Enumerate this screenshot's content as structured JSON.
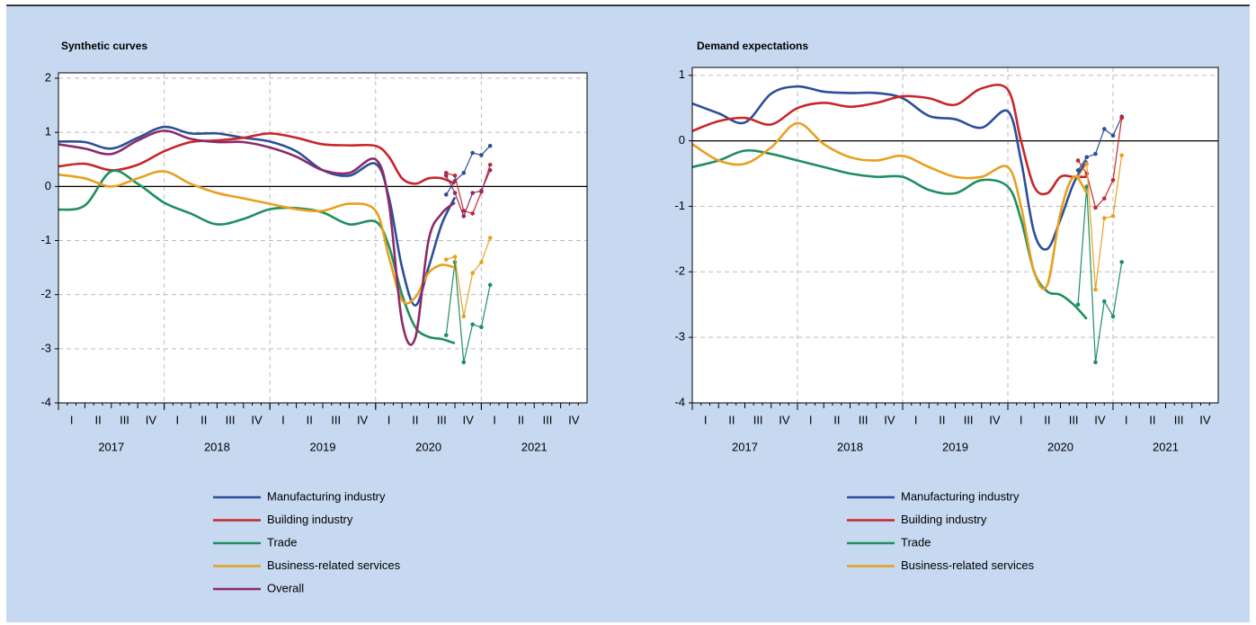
{
  "chart_data": [
    {
      "type": "line",
      "title": "Synthetic curves",
      "x": [
        2017,
        2017.25,
        2017.5,
        2017.75,
        2018,
        2018.25,
        2018.5,
        2018.75,
        2019,
        2019.25,
        2019.5,
        2019.75,
        2020,
        2020.125,
        2020.25,
        2020.375,
        2020.5,
        2020.625,
        2020.75
      ],
      "monthly_x": [
        2020.667,
        2020.75,
        2020.833,
        2020.917,
        2021,
        2021.083
      ],
      "xlim": [
        2017,
        2022
      ],
      "ylim": [
        -4,
        2.1
      ],
      "yticks": [
        -4,
        -3,
        -2,
        -1,
        0,
        1,
        2
      ],
      "years": [
        2017,
        2018,
        2019,
        2020,
        2021
      ],
      "quarters": [
        "I",
        "II",
        "III",
        "IV"
      ],
      "zero_line": true,
      "grid": true,
      "series": [
        {
          "name": "Manufacturing industry",
          "color": "#2b4f98",
          "values": [
            0.83,
            0.82,
            0.7,
            0.9,
            1.1,
            0.98,
            0.98,
            0.9,
            0.83,
            0.65,
            0.3,
            0.2,
            0.42,
            -0.2,
            -1.5,
            -2.2,
            -1.5,
            -0.7,
            -0.2
          ],
          "monthly": [
            -0.15,
            0.1,
            0.25,
            0.62,
            0.58,
            0.75
          ]
        },
        {
          "name": "Building industry",
          "color": "#c8262b",
          "values": [
            0.37,
            0.42,
            0.3,
            0.4,
            0.65,
            0.82,
            0.85,
            0.9,
            0.98,
            0.9,
            0.78,
            0.76,
            0.75,
            0.55,
            0.15,
            0.05,
            0.15,
            0.15,
            0.05
          ],
          "monthly": [
            0.25,
            0.2,
            -0.45,
            -0.5,
            -0.1,
            0.4
          ]
        },
        {
          "name": "Trade",
          "color": "#1f8f5f",
          "values": [
            -0.43,
            -0.35,
            0.28,
            0.05,
            -0.3,
            -0.5,
            -0.7,
            -0.6,
            -0.42,
            -0.4,
            -0.48,
            -0.7,
            -0.65,
            -1.1,
            -2.0,
            -2.6,
            -2.78,
            -2.82,
            -2.9
          ],
          "monthly": [
            -2.75,
            -1.4,
            -3.25,
            -2.55,
            -2.6,
            -1.82
          ]
        },
        {
          "name": "Business-related services",
          "color": "#e8a020",
          "values": [
            0.22,
            0.15,
            0.0,
            0.15,
            0.28,
            0.05,
            -0.12,
            -0.22,
            -0.32,
            -0.42,
            -0.45,
            -0.32,
            -0.45,
            -1.3,
            -2.1,
            -2.05,
            -1.6,
            -1.45,
            -1.5
          ],
          "monthly": [
            -1.35,
            -1.3,
            -2.4,
            -1.6,
            -1.4,
            -0.95
          ]
        },
        {
          "name": "Overall",
          "color": "#8b2b6b",
          "values": [
            0.78,
            0.7,
            0.6,
            0.85,
            1.03,
            0.88,
            0.82,
            0.82,
            0.72,
            0.55,
            0.3,
            0.25,
            0.5,
            -0.3,
            -2.5,
            -2.8,
            -1.0,
            -0.5,
            -0.3
          ],
          "monthly": [
            0.2,
            -0.12,
            -0.55,
            -0.12,
            -0.08,
            0.3
          ]
        }
      ]
    },
    {
      "type": "line",
      "title": "Demand expectations",
      "x": [
        2017,
        2017.25,
        2017.5,
        2017.75,
        2018,
        2018.25,
        2018.5,
        2018.75,
        2019,
        2019.25,
        2019.5,
        2019.75,
        2020,
        2020.125,
        2020.25,
        2020.375,
        2020.5,
        2020.625,
        2020.75
      ],
      "monthly_x": [
        2020.667,
        2020.75,
        2020.833,
        2020.917,
        2021,
        2021.083
      ],
      "xlim": [
        2017,
        2022
      ],
      "ylim": [
        -4,
        1.12
      ],
      "yticks": [
        -4,
        -3,
        -2,
        -1,
        0,
        1
      ],
      "years": [
        2017,
        2018,
        2019,
        2020,
        2021
      ],
      "quarters": [
        "I",
        "II",
        "III",
        "IV"
      ],
      "zero_line": true,
      "grid": true,
      "series": [
        {
          "name": "Manufacturing industry",
          "color": "#2b4f98",
          "values": [
            0.57,
            0.42,
            0.28,
            0.72,
            0.83,
            0.75,
            0.73,
            0.73,
            0.65,
            0.38,
            0.33,
            0.2,
            0.45,
            -0.3,
            -1.4,
            -1.65,
            -1.2,
            -0.65,
            -0.3
          ],
          "monthly": [
            -0.45,
            -0.25,
            -0.2,
            0.18,
            0.08,
            0.37
          ]
        },
        {
          "name": "Building industry",
          "color": "#c8262b",
          "values": [
            0.15,
            0.3,
            0.35,
            0.25,
            0.5,
            0.58,
            0.52,
            0.58,
            0.68,
            0.65,
            0.55,
            0.8,
            0.78,
            0.0,
            -0.7,
            -0.8,
            -0.55,
            -0.55,
            -0.55
          ],
          "monthly": [
            -0.3,
            -0.5,
            -1.02,
            -0.88,
            -0.6,
            0.35
          ]
        },
        {
          "name": "Trade",
          "color": "#1f8f5f",
          "values": [
            -0.4,
            -0.3,
            -0.15,
            -0.2,
            -0.3,
            -0.4,
            -0.5,
            -0.55,
            -0.55,
            -0.75,
            -0.8,
            -0.6,
            -0.7,
            -1.2,
            -2.0,
            -2.3,
            -2.35,
            -2.5,
            -2.72
          ],
          "monthly": [
            -2.5,
            -0.7,
            -3.38,
            -2.45,
            -2.68,
            -1.85
          ]
        },
        {
          "name": "Business-related services",
          "color": "#e8a020",
          "values": [
            -0.05,
            -0.3,
            -0.35,
            -0.1,
            0.27,
            -0.05,
            -0.25,
            -0.3,
            -0.23,
            -0.4,
            -0.55,
            -0.55,
            -0.4,
            -1.0,
            -2.0,
            -2.2,
            -1.1,
            -0.55,
            -0.8
          ],
          "monthly": [
            -0.55,
            -0.35,
            -2.27,
            -1.18,
            -1.15,
            -0.22
          ]
        }
      ]
    }
  ]
}
